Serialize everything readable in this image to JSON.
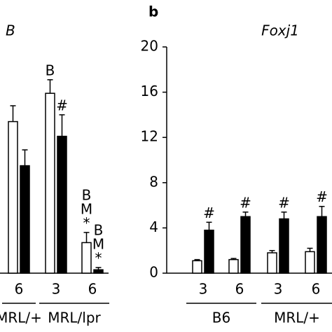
{
  "chart_data": [
    {
      "type": "bar",
      "title": "B",
      "categories": [
        "6",
        "3",
        "6"
      ],
      "groups": [
        {
          "label": "MRL/+",
          "span": [
            0,
            0
          ]
        },
        {
          "label": "MRL/lpr",
          "span": [
            1,
            2
          ]
        }
      ],
      "ylim": [
        0,
        20
      ],
      "series": [
        {
          "color": "#ffffff",
          "values": [
            13.4,
            15.9,
            2.7
          ],
          "errors": [
            1.4,
            1.2,
            0.9
          ],
          "annotations": [
            null,
            [
              "B"
            ],
            [
              "B",
              "M",
              "*"
            ]
          ]
        },
        {
          "color": "#000000",
          "values": [
            9.5,
            12.1,
            0.3
          ],
          "errors": [
            1.4,
            1.9,
            0.2
          ],
          "annotations": [
            null,
            [
              "#"
            ],
            [
              "B",
              "M",
              "*"
            ]
          ]
        }
      ]
    },
    {
      "type": "bar",
      "panel_label": "b",
      "title": "Foxj1",
      "categories": [
        "3",
        "6",
        "3",
        "6"
      ],
      "groups": [
        {
          "label": "B6",
          "span": [
            0,
            1
          ]
        },
        {
          "label": "MRL/+",
          "span": [
            2,
            3
          ]
        }
      ],
      "ylim": [
        0,
        20
      ],
      "yticks": [
        0,
        4,
        8,
        12,
        16,
        20
      ],
      "series": [
        {
          "color": "#ffffff",
          "values": [
            1.1,
            1.2,
            1.8,
            1.9
          ],
          "errors": [
            0.1,
            0.1,
            0.2,
            0.3
          ],
          "annotations": [
            null,
            null,
            null,
            null
          ]
        },
        {
          "color": "#000000",
          "values": [
            3.8,
            5.0,
            4.8,
            5.0
          ],
          "errors": [
            0.7,
            0.4,
            0.6,
            0.9
          ],
          "annotations": [
            [
              "#"
            ],
            [
              "#"
            ],
            [
              "#"
            ],
            [
              "#"
            ]
          ]
        }
      ]
    }
  ]
}
